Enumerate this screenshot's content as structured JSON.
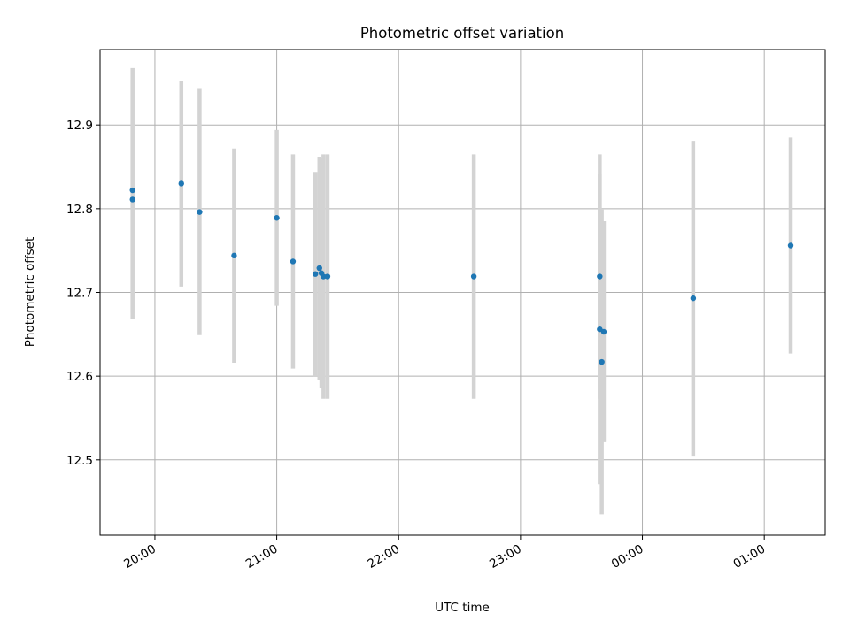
{
  "chart_data": {
    "type": "scatter",
    "title": "Photometric offset variation",
    "xlabel": "UTC time",
    "ylabel": "Photometric offset",
    "x_axis_type": "time",
    "xlim": [
      "19:33",
      "01:30 (+1 day)"
    ],
    "ylim": [
      12.41,
      12.99
    ],
    "grid": true,
    "x_ticks": [
      "20:00",
      "21:00",
      "22:00",
      "23:00",
      "00:00",
      "01:00"
    ],
    "y_ticks": [
      "12.5",
      "12.6",
      "12.7",
      "12.8",
      "12.9"
    ],
    "y_tick_values": [
      12.5,
      12.6,
      12.7,
      12.8,
      12.9
    ],
    "marker_color": "#1f77b4",
    "errorbar_color": "#d3d3d3",
    "points": [
      {
        "time": "19:49",
        "y": 12.811,
        "err": 0.143
      },
      {
        "time": "19:49",
        "y": 12.822,
        "err": 0.146
      },
      {
        "time": "20:13",
        "y": 12.83,
        "err": 0.123
      },
      {
        "time": "20:22",
        "y": 12.796,
        "err": 0.147
      },
      {
        "time": "20:39",
        "y": 12.744,
        "err": 0.128
      },
      {
        "time": "21:00",
        "y": 12.789,
        "err": 0.105
      },
      {
        "time": "21:08",
        "y": 12.737,
        "err": 0.128
      },
      {
        "time": "21:19",
        "y": 12.722,
        "err": 0.122
      },
      {
        "time": "21:21",
        "y": 12.729,
        "err": 0.133
      },
      {
        "time": "21:22",
        "y": 12.723,
        "err": 0.137
      },
      {
        "time": "21:23",
        "y": 12.719,
        "err": 0.146
      },
      {
        "time": "21:25",
        "y": 12.719,
        "err": 0.146
      },
      {
        "time": "22:37",
        "y": 12.719,
        "err": 0.146
      },
      {
        "time": "23:39",
        "y": 12.719,
        "err": 0.146
      },
      {
        "time": "23:39",
        "y": 12.656,
        "err": 0.185
      },
      {
        "time": "23:40",
        "y": 12.617,
        "err": 0.182
      },
      {
        "time": "23:41",
        "y": 12.653,
        "err": 0.132
      },
      {
        "time": "00:25",
        "y": 12.693,
        "err": 0.188
      },
      {
        "time": "01:13",
        "y": 12.756,
        "err": 0.129
      }
    ]
  }
}
